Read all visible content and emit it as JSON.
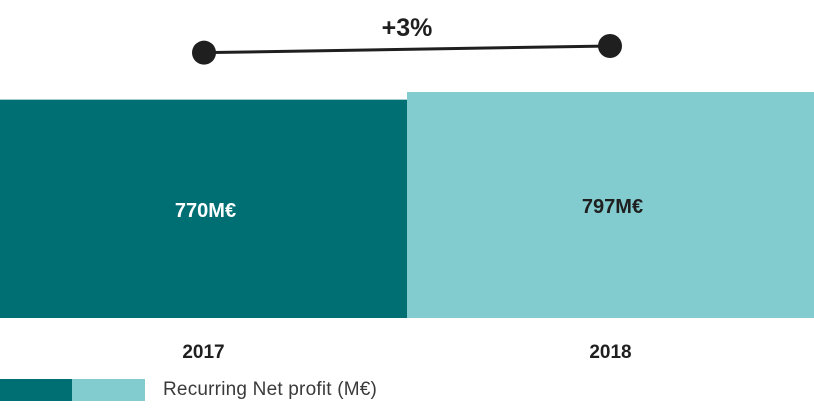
{
  "chart_data": {
    "type": "bar",
    "categories": [
      "2017",
      "2018"
    ],
    "values": [
      770,
      797
    ],
    "value_labels": [
      "770M€",
      "797M€"
    ],
    "series": [
      {
        "name": "Recurring Net profit (M€)",
        "values": [
          770,
          797
        ]
      }
    ],
    "colors": [
      "#006f73",
      "#82cbcf"
    ],
    "change_label": "+3%",
    "ylim": [
      0,
      800
    ],
    "grid": false,
    "legend_position": "bottom-left"
  },
  "legend": {
    "label": "Recurring Net profit (M€)"
  }
}
